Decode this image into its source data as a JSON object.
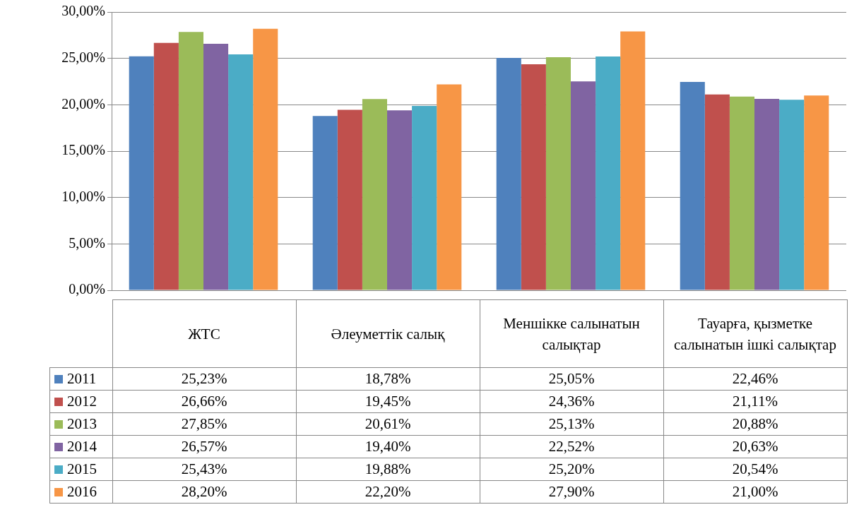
{
  "chart_data": {
    "type": "bar",
    "categories": [
      "ЖТС",
      "Әлеуметтік салық",
      "Меншікке салынатын салықтар",
      "Тауарға, қызметке салынатын ішкі салықтар"
    ],
    "series": [
      {
        "name": "2011",
        "color": "#4f81bd",
        "values": [
          25.23,
          18.78,
          25.05,
          22.46
        ],
        "value_labels": [
          "25,23%",
          "18,78%",
          "25,05%",
          "22,46%"
        ]
      },
      {
        "name": "2012",
        "color": "#c0504d",
        "values": [
          26.66,
          19.45,
          24.36,
          21.11
        ],
        "value_labels": [
          "26,66%",
          "19,45%",
          "24,36%",
          "21,11%"
        ]
      },
      {
        "name": "2013",
        "color": "#9bbb59",
        "values": [
          27.85,
          20.61,
          25.13,
          20.88
        ],
        "value_labels": [
          "27,85%",
          "20,61%",
          "25,13%",
          "20,88%"
        ]
      },
      {
        "name": "2014",
        "color": "#8064a2",
        "values": [
          26.57,
          19.4,
          22.52,
          20.63
        ],
        "value_labels": [
          "26,57%",
          "19,40%",
          "22,52%",
          "20,63%"
        ]
      },
      {
        "name": "2015",
        "color": "#4bacc6",
        "values": [
          25.43,
          19.88,
          25.2,
          20.54
        ],
        "value_labels": [
          "25,43%",
          "19,88%",
          "25,20%",
          "20,54%"
        ]
      },
      {
        "name": "2016",
        "color": "#f79646",
        "values": [
          28.2,
          22.2,
          27.9,
          21
        ],
        "value_labels": [
          "28,20%",
          "22,20%",
          "27,90%",
          "21,00%"
        ]
      }
    ],
    "ylim": [
      0,
      30
    ],
    "yticks": [
      {
        "value": 0,
        "label": "0,00%"
      },
      {
        "value": 5,
        "label": "5,00%"
      },
      {
        "value": 10,
        "label": "10,00%"
      },
      {
        "value": 15,
        "label": "15,00%"
      },
      {
        "value": 20,
        "label": "20,00%"
      },
      {
        "value": 25,
        "label": "25,00%"
      },
      {
        "value": 30,
        "label": "30,00%"
      }
    ],
    "grid": "y",
    "legend": "bottom"
  }
}
